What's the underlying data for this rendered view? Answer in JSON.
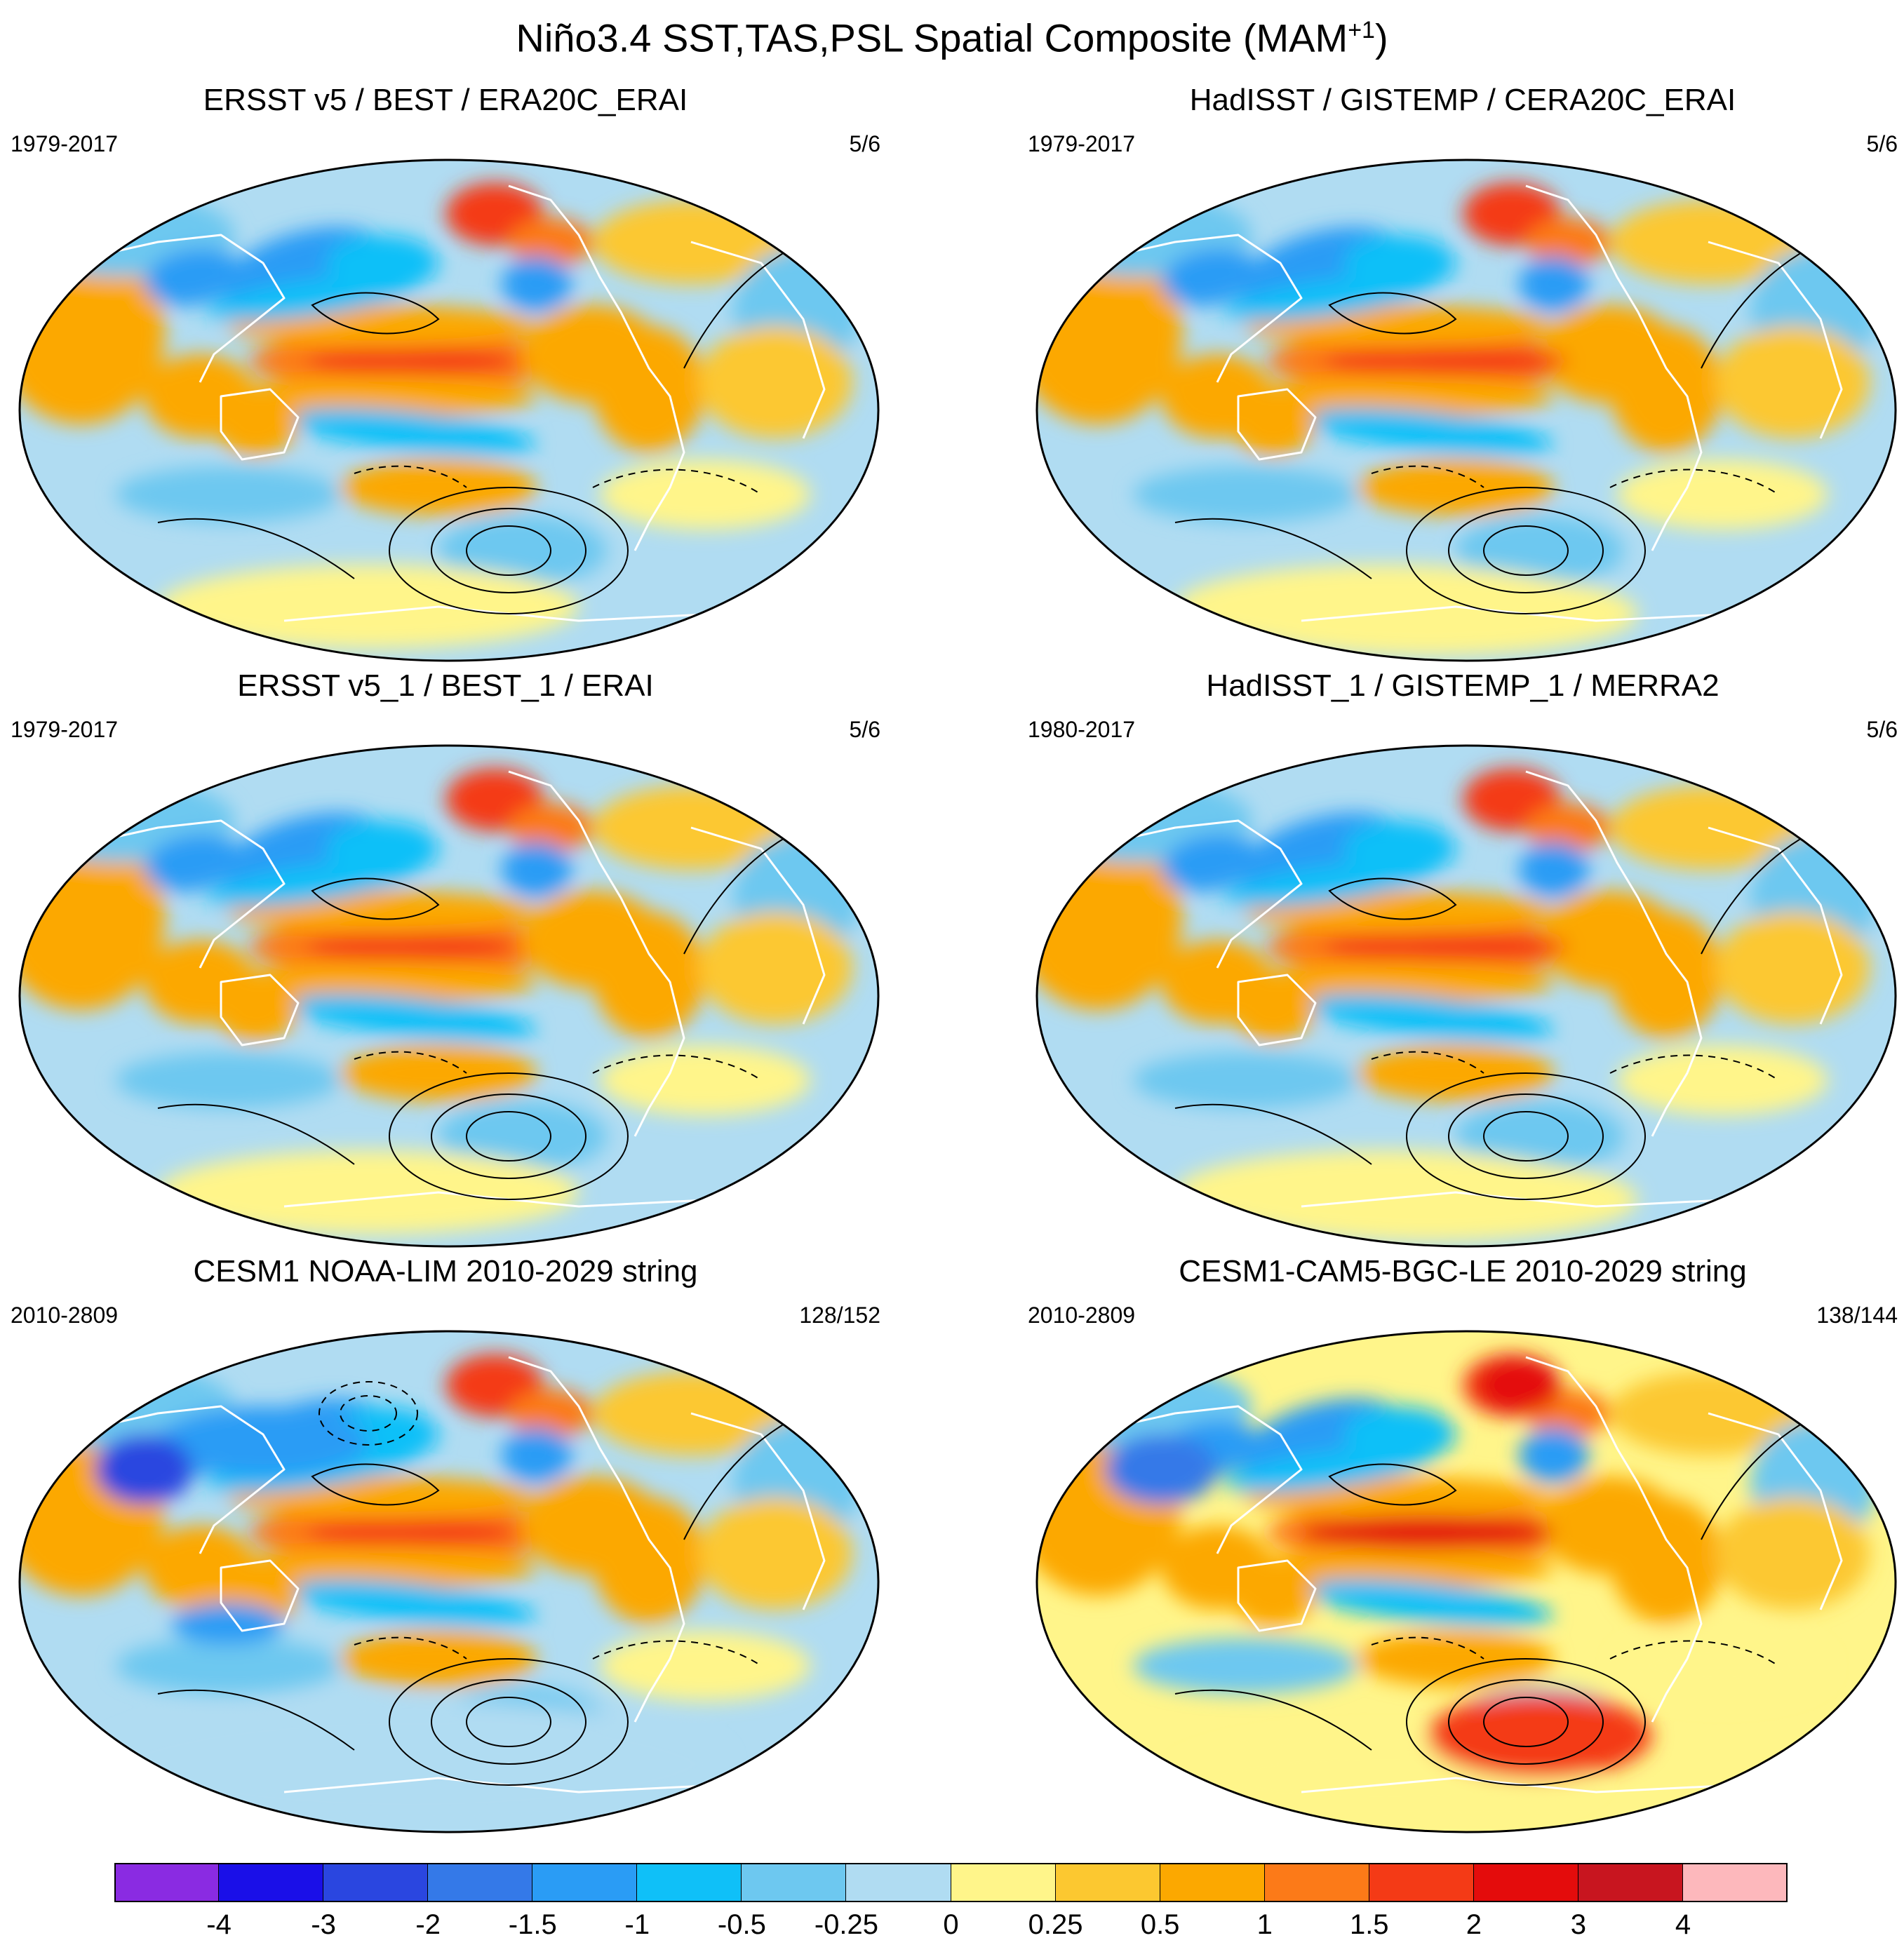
{
  "title": {
    "text": "Niño3.4 SST,TAS,PSL Spatial Composite (MAM",
    "superscript": "+1",
    "close": ")"
  },
  "panels": [
    {
      "title": "ERSST v5 / BEST / ERA20C_ERAI",
      "period": "1979-2017",
      "ratio": "5/6",
      "style": "obs"
    },
    {
      "title": "HadISST / GISTEMP / CERA20C_ERAI",
      "period": "1979-2017",
      "ratio": "5/6",
      "style": "obs2"
    },
    {
      "title": "ERSST v5_1 / BEST_1 / ERAI",
      "period": "1979-2017",
      "ratio": "5/6",
      "style": "obs"
    },
    {
      "title": "HadISST_1 / GISTEMP_1 / MERRA2",
      "period": "1980-2017",
      "ratio": "5/6",
      "style": "obs2"
    },
    {
      "title": "CESM1 NOAA-LIM 2010-2029 string",
      "period": "2010-2809",
      "ratio": "128/152",
      "style": "lim"
    },
    {
      "title": "CESM1-CAM5-BGC-LE 2010-2029 string",
      "period": "2010-2809",
      "ratio": "138/144",
      "style": "le"
    }
  ],
  "colorbar": {
    "labels": [
      "-4",
      "-3",
      "-2",
      "-1.5",
      "-1",
      "-0.5",
      "-0.25",
      "0",
      "0.25",
      "0.5",
      "1",
      "1.5",
      "2",
      "3",
      "4"
    ],
    "colors": [
      "#8a2be2",
      "#1a0fe8",
      "#2a46e0",
      "#3479e8",
      "#2a9cf5",
      "#0fc0f8",
      "#6dc8f0",
      "#b0dcf2",
      "#fff58a",
      "#fcc830",
      "#fca800",
      "#fc7a18",
      "#f43a16",
      "#e40c0c",
      "#c8151f",
      "#fdb8bc"
    ]
  }
}
